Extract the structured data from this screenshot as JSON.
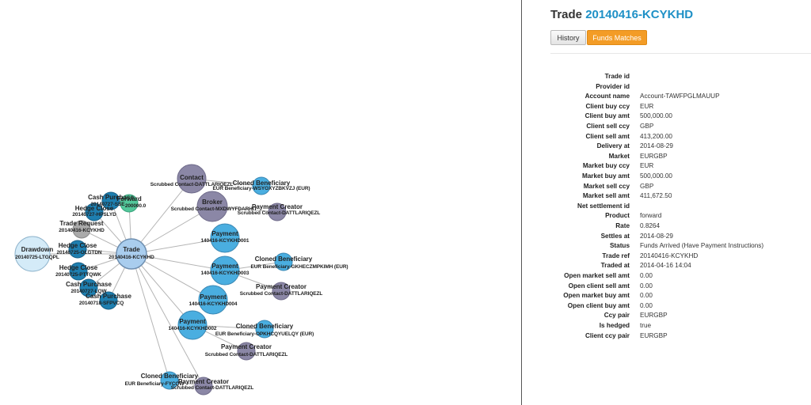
{
  "detail": {
    "title_prefix": "Trade",
    "title_ref": "20140416-KCYKHD",
    "buttons": {
      "history": "History",
      "funds_matches": "Funds Matches"
    },
    "rows": [
      {
        "key": "Trade id",
        "value": ""
      },
      {
        "key": "Provider id",
        "value": ""
      },
      {
        "key": "Account name",
        "value": "Account-TAWFPGLMAUUP"
      },
      {
        "key": "Client buy ccy",
        "value": "EUR"
      },
      {
        "key": "Client buy amt",
        "value": "500,000.00"
      },
      {
        "key": "Client sell ccy",
        "value": "GBP"
      },
      {
        "key": "Client sell amt",
        "value": "413,200.00"
      },
      {
        "key": "Delivery at",
        "value": "2014-08-29"
      },
      {
        "key": "Market",
        "value": "EURGBP"
      },
      {
        "key": "Market buy ccy",
        "value": "EUR"
      },
      {
        "key": "Market buy amt",
        "value": "500,000.00"
      },
      {
        "key": "Market sell ccy",
        "value": "GBP"
      },
      {
        "key": "Market sell amt",
        "value": "411,672.50"
      },
      {
        "key": "Net settlement id",
        "value": ""
      },
      {
        "key": "Product",
        "value": "forward"
      },
      {
        "key": "Rate",
        "value": "0.8264"
      },
      {
        "key": "Settles at",
        "value": "2014-08-29"
      },
      {
        "key": "Status",
        "value": "Funds Arrived (Have Payment Instructions)"
      },
      {
        "key": "Trade ref",
        "value": "20140416-KCYKHD"
      },
      {
        "key": "Traded at",
        "value": "2014-04-16 14:04"
      },
      {
        "key": "Open market sell amt",
        "value": "0.00"
      },
      {
        "key": "Open client sell amt",
        "value": "0.00"
      },
      {
        "key": "Open market buy amt",
        "value": "0.00"
      },
      {
        "key": "Open client buy amt",
        "value": "0.00"
      },
      {
        "key": "Ccy pair",
        "value": "EURGBP"
      },
      {
        "key": "Is hedged",
        "value": "true"
      },
      {
        "key": "Client ccy pair",
        "value": "EURGBP"
      }
    ]
  },
  "colors": {
    "payment": "#4aaee0",
    "trade": "#a9cdee",
    "purple": "#8b87a6",
    "hedge": "#1e7fb0",
    "drawdown": "#d4ebf8",
    "request": "#aaaaaa",
    "green": "#52c79a",
    "edge": "#b5b5b5"
  },
  "graph": {
    "nodes": [
      {
        "id": "trade",
        "type": "trade",
        "label": "Trade",
        "sub": "20140416-KCYKHD"
      },
      {
        "id": "drawdown",
        "type": "drawdown",
        "label": "Drawdown",
        "sub": "20140725-LTGQPL"
      },
      {
        "id": "contact",
        "type": "purple",
        "label": "Contact",
        "sub": "Scrubbed Contact-DATTLARIQEZL"
      },
      {
        "id": "broker",
        "type": "purple",
        "label": "Broker",
        "sub": "Scrubbed Contact-MXDWYFDARHIT"
      },
      {
        "id": "cb1",
        "type": "payment",
        "label": "Cloned Beneficiary",
        "sub": "EUR Beneficiary-WSYOXYZBKVZJ (EUR)"
      },
      {
        "id": "pc1",
        "type": "purple",
        "label": "Payment Creator",
        "sub": "Scrubbed Contact-DATTLARIQEZL"
      },
      {
        "id": "pay1",
        "type": "payment",
        "label": "Payment",
        "sub": "140416-KCYKHD001"
      },
      {
        "id": "pay3",
        "type": "payment",
        "label": "Payment",
        "sub": "140416-KCYKHD003"
      },
      {
        "id": "cb3",
        "type": "payment",
        "label": "Cloned Beneficiary",
        "sub": "EUR Beneficiary-GKHECZMPKIMH (EUR)"
      },
      {
        "id": "pc3",
        "type": "purple",
        "label": "Payment Creator",
        "sub": "Scrubbed Contact-DATTLARIQEZL"
      },
      {
        "id": "pay4",
        "type": "payment",
        "label": "Payment",
        "sub": "140416-KCYKHD004"
      },
      {
        "id": "pay2",
        "type": "payment",
        "label": "Payment",
        "sub": "140416-KCYKHD002"
      },
      {
        "id": "cb2",
        "type": "payment",
        "label": "Cloned Beneficiary",
        "sub": "EUR Beneficiary-OPKHCQYUELQY (EUR)"
      },
      {
        "id": "pc2",
        "type": "purple",
        "label": "Payment Creator",
        "sub": "Scrubbed Contact-DATTLARIQEZL"
      },
      {
        "id": "cb4",
        "type": "payment",
        "label": "Cloned Beneficiary",
        "sub": "EUR Beneficiary-FYCQW"
      },
      {
        "id": "pc4",
        "type": "purple",
        "label": "Payment Creator",
        "sub": "Scrubbed Contact-DATTLARIQEZL"
      },
      {
        "id": "forward",
        "type": "green",
        "label": "Forward",
        "sub": "200000.0"
      },
      {
        "id": "cp1",
        "type": "hedge",
        "label": "Cash Purchase",
        "sub": "20140727-SSE"
      },
      {
        "id": "hc1",
        "type": "hedge",
        "label": "Hedge Close",
        "sub": "20140727-HPSLYD"
      },
      {
        "id": "tr",
        "type": "request",
        "label": "Trade Request",
        "sub": "20140416-KCYKHD"
      },
      {
        "id": "hc2",
        "type": "hedge",
        "label": "Hedge Close",
        "sub": "20140725-OLGTDN"
      },
      {
        "id": "hc3",
        "type": "hedge",
        "label": "Hedge Close",
        "sub": "20140725-PTTQWK"
      },
      {
        "id": "cp2",
        "type": "hedge",
        "label": "Cash Purchase",
        "sub": "20140727-LQW"
      },
      {
        "id": "cp3",
        "type": "hedge",
        "label": "Cash Purchase",
        "sub": "20140718-SFPVCQ"
      }
    ],
    "edges": [
      [
        "trade",
        "contact"
      ],
      [
        "trade",
        "broker"
      ],
      [
        "trade",
        "pay1"
      ],
      [
        "trade",
        "pay3"
      ],
      [
        "trade",
        "pay4"
      ],
      [
        "trade",
        "pay2"
      ],
      [
        "trade",
        "drawdown"
      ],
      [
        "trade",
        "forward"
      ],
      [
        "trade",
        "cp1"
      ],
      [
        "trade",
        "hc1"
      ],
      [
        "trade",
        "tr"
      ],
      [
        "trade",
        "hc2"
      ],
      [
        "trade",
        "hc3"
      ],
      [
        "trade",
        "cp2"
      ],
      [
        "trade",
        "cp3"
      ],
      [
        "trade",
        "cb4"
      ],
      [
        "trade",
        "pc4"
      ],
      [
        "contact",
        "cb1"
      ],
      [
        "broker",
        "pc1"
      ],
      [
        "pay3",
        "cb3"
      ],
      [
        "pay3",
        "pc3"
      ],
      [
        "pay2",
        "cb2"
      ],
      [
        "pay2",
        "pc2"
      ],
      [
        "cb4",
        "pc4"
      ]
    ]
  }
}
